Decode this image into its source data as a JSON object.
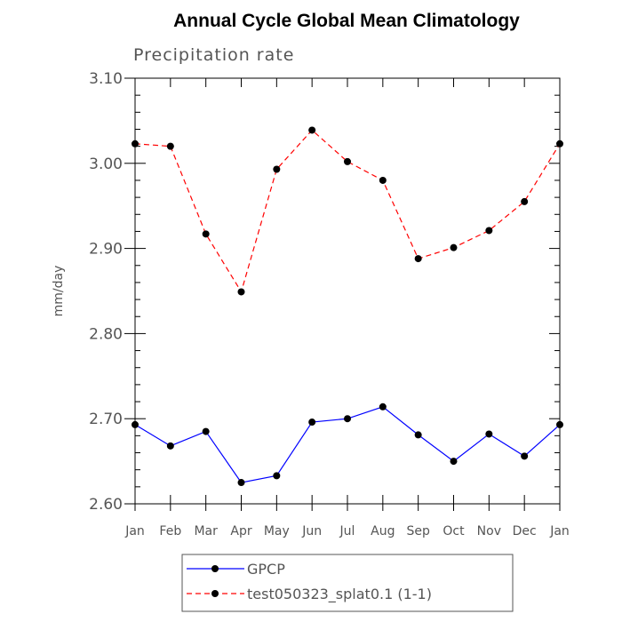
{
  "chart_data": {
    "type": "line",
    "title": "Annual Cycle Global Mean Climatology",
    "subtitle": "Precipitation rate",
    "xlabel": "",
    "ylabel": "mm/day",
    "categories": [
      "Jan",
      "Feb",
      "Mar",
      "Apr",
      "May",
      "Jun",
      "Jul",
      "Aug",
      "Sep",
      "Oct",
      "Nov",
      "Dec",
      "Jan"
    ],
    "ylim": [
      2.6,
      3.1
    ],
    "yticks": [
      "2.60",
      "2.70",
      "2.80",
      "2.90",
      "3.00",
      "3.10"
    ],
    "grid": false,
    "legend_position": "bottom",
    "series": [
      {
        "name": "GPCP",
        "color": "#0000ff",
        "dash": "solid",
        "values": [
          2.693,
          2.668,
          2.685,
          2.625,
          2.633,
          2.696,
          2.7,
          2.714,
          2.681,
          2.65,
          2.682,
          2.656,
          2.693
        ]
      },
      {
        "name": "test050323_splat0.1 (1-1)",
        "color": "#ff0000",
        "dash": "dashed",
        "values": [
          3.023,
          3.02,
          2.917,
          2.849,
          2.993,
          3.039,
          3.002,
          2.98,
          2.888,
          2.901,
          2.921,
          2.955,
          3.023
        ]
      }
    ]
  }
}
